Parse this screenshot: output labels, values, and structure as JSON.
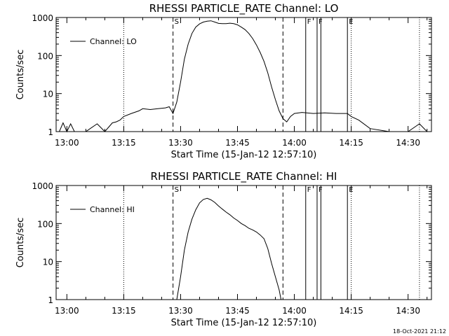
{
  "footer_timestamp": "18-Oct-2021 21:12",
  "chart_data": [
    {
      "type": "line",
      "title": "RHESSI PARTICLE_RATE Channel: LO",
      "xlabel": "Start Time (15-Jan-12 12:57:10)",
      "ylabel": "Counts/sec",
      "yscale": "log",
      "ylim": [
        1,
        1000
      ],
      "xlim": [
        "12:57:10",
        "14:36:10"
      ],
      "x_ticks": [
        "13:00",
        "13:15",
        "13:30",
        "13:45",
        "14:00",
        "14:15",
        "14:30"
      ],
      "y_ticks": [
        "1",
        "10",
        "100",
        "1000"
      ],
      "legend": {
        "position": "top-left",
        "entries": [
          "Channel: LO"
        ]
      },
      "markers": [
        {
          "time": "13:15",
          "style": "dotted",
          "label": ""
        },
        {
          "time": "13:28",
          "style": "dashed",
          "label": "S"
        },
        {
          "time": "13:57",
          "style": "dashed",
          "label": ""
        },
        {
          "time": "14:03",
          "style": "solid",
          "label": "F"
        },
        {
          "time": "14:06",
          "style": "solid",
          "label": "F"
        },
        {
          "time": "14:07",
          "style": "solid",
          "label": ""
        },
        {
          "time": "14:14",
          "style": "solid",
          "label": "E"
        },
        {
          "time": "14:15",
          "style": "dotted",
          "label": ""
        },
        {
          "time": "14:33",
          "style": "dotted",
          "label": ""
        }
      ],
      "series": [
        {
          "name": "Channel: LO",
          "x": [
            "12:58",
            "12:59",
            "13:00",
            "13:01",
            "13:02",
            "13:05",
            "13:08",
            "13:10",
            "13:12",
            "13:13",
            "13:14",
            "13:15",
            "13:17",
            "13:19",
            "13:20",
            "13:22",
            "13:24",
            "13:26",
            "13:27",
            "13:28",
            "13:29",
            "13:30",
            "13:31",
            "13:32",
            "13:33",
            "13:34",
            "13:35",
            "13:36",
            "13:37",
            "13:38",
            "13:39",
            "13:40",
            "13:41",
            "13:42",
            "13:43",
            "13:44",
            "13:45",
            "13:46",
            "13:47",
            "13:48",
            "13:49",
            "13:50",
            "13:51",
            "13:52",
            "13:53",
            "13:54",
            "13:55",
            "13:56",
            "13:57",
            "13:58",
            "13:59",
            "14:00",
            "14:02",
            "14:05",
            "14:08",
            "14:11",
            "14:14",
            "14:15",
            "14:17",
            "14:20",
            "14:25",
            "14:30",
            "14:33",
            "14:35"
          ],
          "values": [
            1,
            1.7,
            1,
            1.6,
            1,
            1,
            1.6,
            1,
            1.7,
            1.8,
            2,
            2.5,
            3,
            3.5,
            4,
            3.8,
            4,
            4.2,
            4.5,
            3,
            6,
            20,
            80,
            200,
            380,
            560,
            680,
            760,
            800,
            820,
            760,
            700,
            690,
            690,
            710,
            690,
            640,
            560,
            480,
            380,
            280,
            190,
            120,
            70,
            35,
            15,
            7,
            3.5,
            2.2,
            1.8,
            2.5,
            3,
            3.2,
            3,
            3.1,
            3,
            3,
            2.5,
            2,
            1.2,
            1,
            1,
            1.6,
            1
          ]
        }
      ]
    },
    {
      "type": "line",
      "title": "RHESSI PARTICLE_RATE Channel: HI",
      "xlabel": "Start Time (15-Jan-12 12:57:10)",
      "ylabel": "Counts/sec",
      "yscale": "log",
      "ylim": [
        1,
        1000
      ],
      "xlim": [
        "12:57:10",
        "14:36:10"
      ],
      "x_ticks": [
        "13:00",
        "13:15",
        "13:30",
        "13:45",
        "14:00",
        "14:15",
        "14:30"
      ],
      "y_ticks": [
        "1",
        "10",
        "100",
        "1000"
      ],
      "legend": {
        "position": "top-left",
        "entries": [
          "Channel: HI"
        ]
      },
      "markers": [
        {
          "time": "13:15",
          "style": "dotted",
          "label": ""
        },
        {
          "time": "13:28",
          "style": "dashed",
          "label": "S"
        },
        {
          "time": "13:57",
          "style": "dashed",
          "label": ""
        },
        {
          "time": "14:03",
          "style": "solid",
          "label": "F"
        },
        {
          "time": "14:06",
          "style": "solid",
          "label": "F"
        },
        {
          "time": "14:07",
          "style": "solid",
          "label": ""
        },
        {
          "time": "14:14",
          "style": "solid",
          "label": "E"
        },
        {
          "time": "14:15",
          "style": "dotted",
          "label": ""
        },
        {
          "time": "14:33",
          "style": "dotted",
          "label": ""
        }
      ],
      "series": [
        {
          "name": "Channel: HI",
          "x": [
            "13:29",
            "13:30",
            "13:31",
            "13:32",
            "13:33",
            "13:34",
            "13:35",
            "13:36",
            "13:37",
            "13:38",
            "13:39",
            "13:40",
            "13:41",
            "13:42",
            "13:43",
            "13:44",
            "13:45",
            "13:46",
            "13:47",
            "13:48",
            "13:49",
            "13:50",
            "13:51",
            "13:52",
            "13:53",
            "13:54",
            "13:55",
            "13:56",
            "13:56.5"
          ],
          "values": [
            1,
            4,
            20,
            60,
            130,
            230,
            350,
            430,
            460,
            420,
            360,
            290,
            240,
            200,
            170,
            140,
            120,
            100,
            88,
            75,
            68,
            60,
            50,
            40,
            22,
            9,
            4,
            1.8,
            1
          ]
        }
      ]
    }
  ]
}
